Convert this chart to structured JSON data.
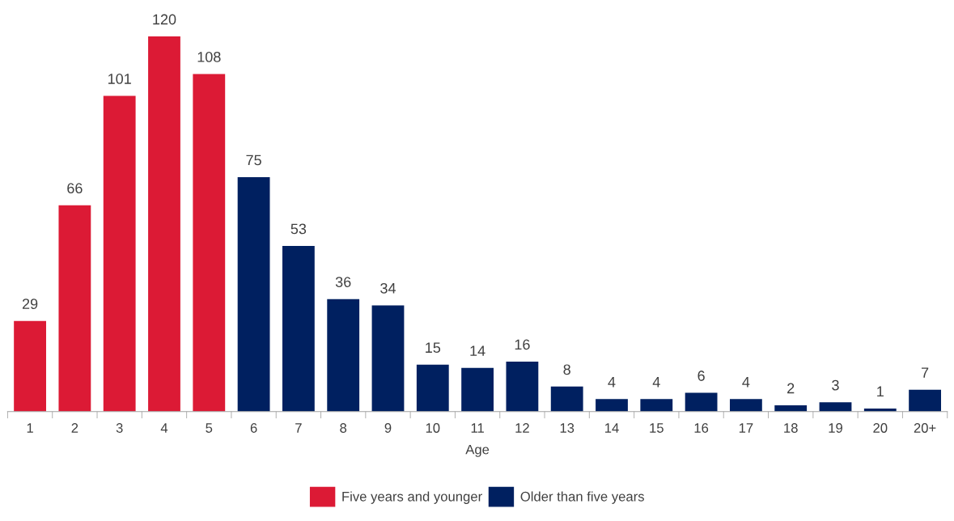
{
  "chart_data": {
    "type": "bar",
    "xlabel": "Age",
    "stacked": true,
    "data_labels": true,
    "legend": "bottom",
    "grid": false,
    "categories": [
      "1",
      "2",
      "3",
      "4",
      "5",
      "6",
      "7",
      "8",
      "9",
      "10",
      "11",
      "12",
      "13",
      "14",
      "15",
      "16",
      "17",
      "18",
      "19",
      "20",
      "20+"
    ],
    "series": [
      {
        "name": "Five years and younger",
        "color": "#dc1a35",
        "values": [
          29,
          66,
          101,
          120,
          108,
          null,
          null,
          null,
          null,
          null,
          null,
          null,
          null,
          null,
          null,
          null,
          null,
          null,
          null,
          null,
          null
        ]
      },
      {
        "name": "Older than five years",
        "color": "#002060",
        "values": [
          null,
          null,
          null,
          null,
          null,
          75,
          53,
          36,
          34,
          15,
          14,
          16,
          8,
          4,
          4,
          6,
          4,
          2,
          3,
          1,
          7
        ]
      }
    ]
  }
}
